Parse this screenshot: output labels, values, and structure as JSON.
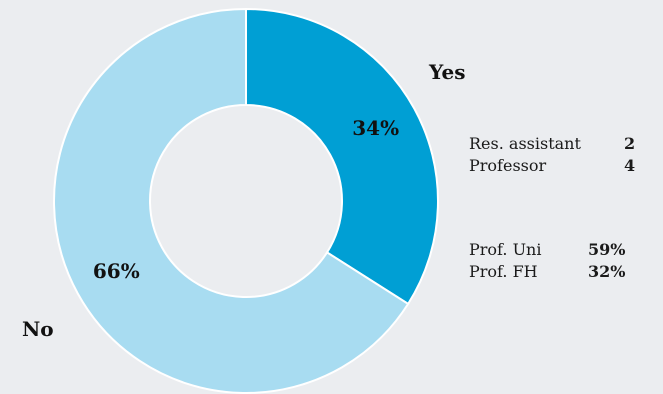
{
  "chart_data": {
    "type": "pie",
    "donut": true,
    "categories": [
      "Yes",
      "No"
    ],
    "values": [
      34,
      66
    ],
    "value_labels": [
      "34%",
      "66%"
    ],
    "colors": [
      "#009fd4",
      "#a8dcf1"
    ],
    "legend": "labels beside slices"
  },
  "breakdown_roles": [
    {
      "label": "Res. assistant",
      "value": "2"
    },
    {
      "label": "Professor",
      "value": "4"
    }
  ],
  "breakdown_prof": [
    {
      "label": "Prof. Uni",
      "value": "59%"
    },
    {
      "label": "Prof. FH",
      "value": "32%"
    }
  ]
}
